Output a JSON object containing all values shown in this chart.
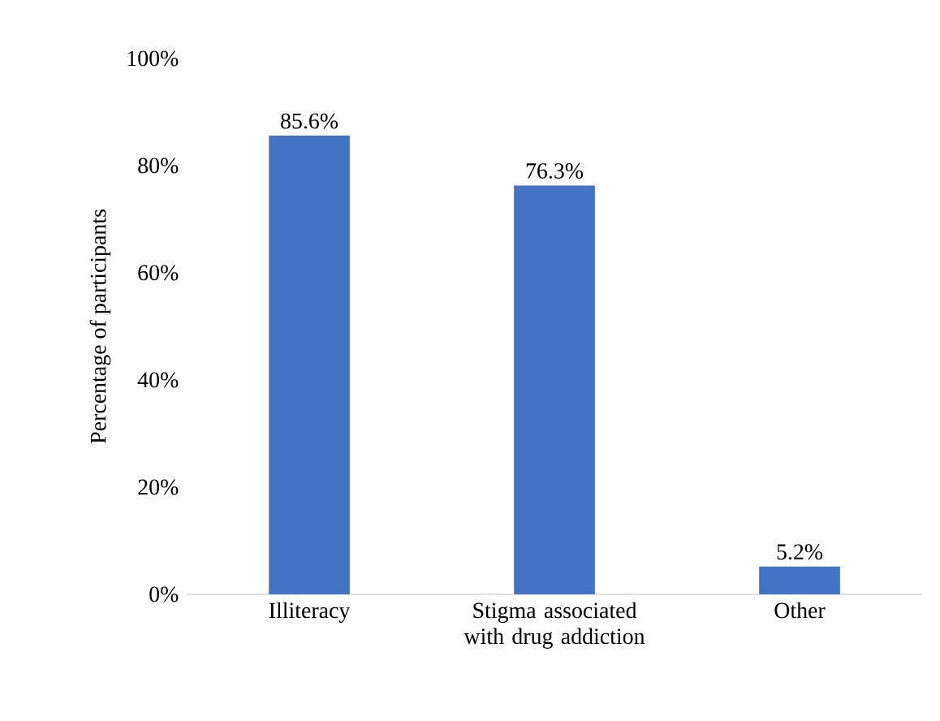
{
  "chart_data": {
    "type": "bar",
    "categories": [
      "Illiteracy",
      "Stigma associated with drug addiction",
      "Other"
    ],
    "values": [
      85.6,
      76.3,
      5.2
    ],
    "color": "#4472c4",
    "ylabel": "Percentage of participants",
    "ylim": [
      0,
      100
    ],
    "yticks": [
      {
        "value": 0,
        "label": "0%"
      },
      {
        "value": 20,
        "label": "20%"
      },
      {
        "value": 40,
        "label": "40%"
      },
      {
        "value": 60,
        "label": "60%"
      },
      {
        "value": 80,
        "label": "80%"
      },
      {
        "value": 100,
        "label": "100%"
      }
    ],
    "value_labels": [
      "85.6%",
      "76.3%",
      "5.2%"
    ]
  }
}
